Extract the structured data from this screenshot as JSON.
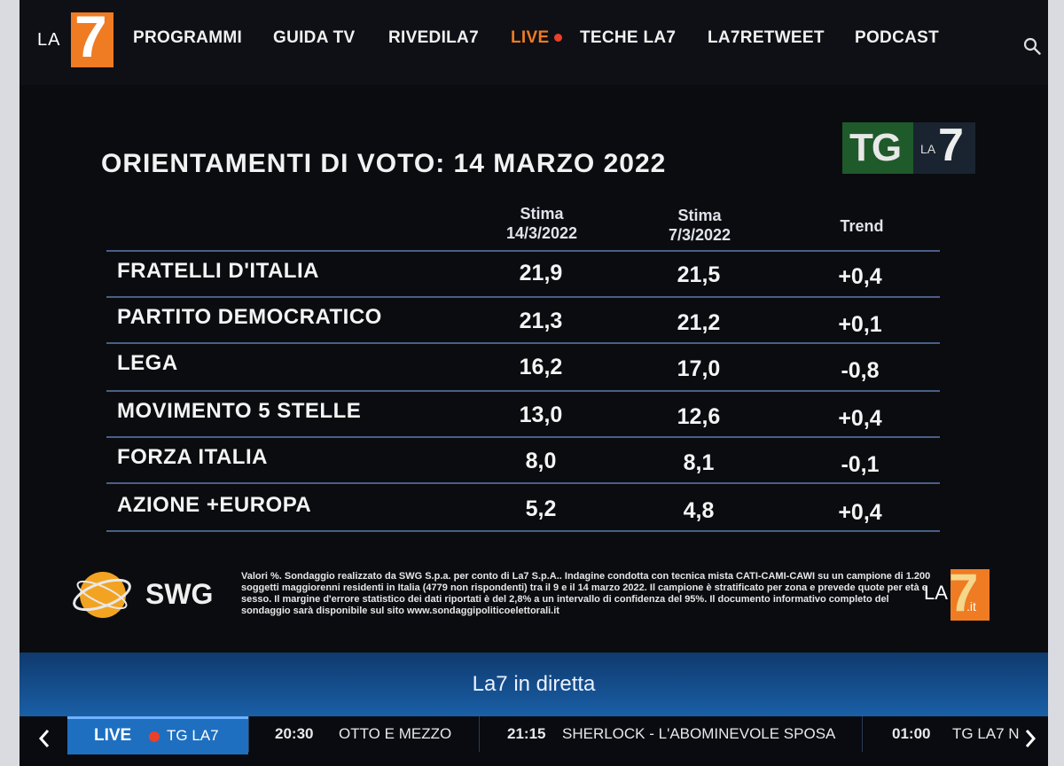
{
  "nav": {
    "logo_text": "LA",
    "logo_seven": "7",
    "items": [
      "PROGRAMMI",
      "GUIDA TV",
      "RIVEDILA7",
      "LIVE",
      "TECHE LA7",
      "LA7RETWEET",
      "PODCAST"
    ]
  },
  "poll": {
    "badge_tg": "TG",
    "badge_la": "LA",
    "badge_seven": "7",
    "title": "ORIENTAMENTI DI VOTO: 14 MARZO 2022",
    "columns": {
      "col1_line1": "Stima",
      "col1_line2": "14/3/2022",
      "col2_line1": "Stima",
      "col2_line2": "7/3/2022",
      "col3": "Trend"
    },
    "rows": [
      {
        "party": "FRATELLI D'ITALIA",
        "current": "21,9",
        "previous": "21,5",
        "trend": "+0,4"
      },
      {
        "party": "PARTITO DEMOCRATICO",
        "current": "21,3",
        "previous": "21,2",
        "trend": "+0,1"
      },
      {
        "party": "LEGA",
        "current": "16,2",
        "previous": "17,0",
        "trend": "-0,8"
      },
      {
        "party": "MOVIMENTO 5 STELLE",
        "current": "13,0",
        "previous": "12,6",
        "trend": "+0,4"
      },
      {
        "party": "FORZA ITALIA",
        "current": "8,0",
        "previous": "8,1",
        "trend": "-0,1"
      },
      {
        "party": "AZIONE +EUROPA",
        "current": "5,2",
        "previous": "4,8",
        "trend": "+0,4"
      }
    ],
    "source_logo": "SWG",
    "footnote": "Valori %. Sondaggio realizzato da SWG S.p.a. per conto di La7 S.p.A.. Indagine condotta con tecnica mista CATI-CAMI-CAWI su un campione di 1.200 soggetti maggiorenni residenti in Italia (4779 non rispondenti) tra il 9 e il 14 marzo 2022. Il campione è stratificato per zona e prevede quote per età e sesso. Il margine d'errore statistico dei dati riportati è del 2,8% a un intervallo di confidenza del 95%. Il documento informativo completo del sondaggio sarà disponibile sul sito www.sondaggipoliticoelettorali.it",
    "corner_logo_la": "LA",
    "corner_logo_seven": "7",
    "corner_logo_it": ".it"
  },
  "live_strip": {
    "title": "La7 in diretta",
    "live_label": "LIVE",
    "live_program": "TG LA7",
    "slots": [
      {
        "time": "20:30",
        "program": "OTTO E MEZZO"
      },
      {
        "time": "21:15",
        "program": "SHERLOCK - L'ABOMINEVOLE SPOSA"
      },
      {
        "time": "01:00",
        "program": "TG LA7 N"
      }
    ]
  },
  "colors": {
    "accent_orange": "#ef7b23",
    "live_red": "#e8402a",
    "strip_blue": "#1e6fc0",
    "rule_blue": "#4a5f86"
  }
}
